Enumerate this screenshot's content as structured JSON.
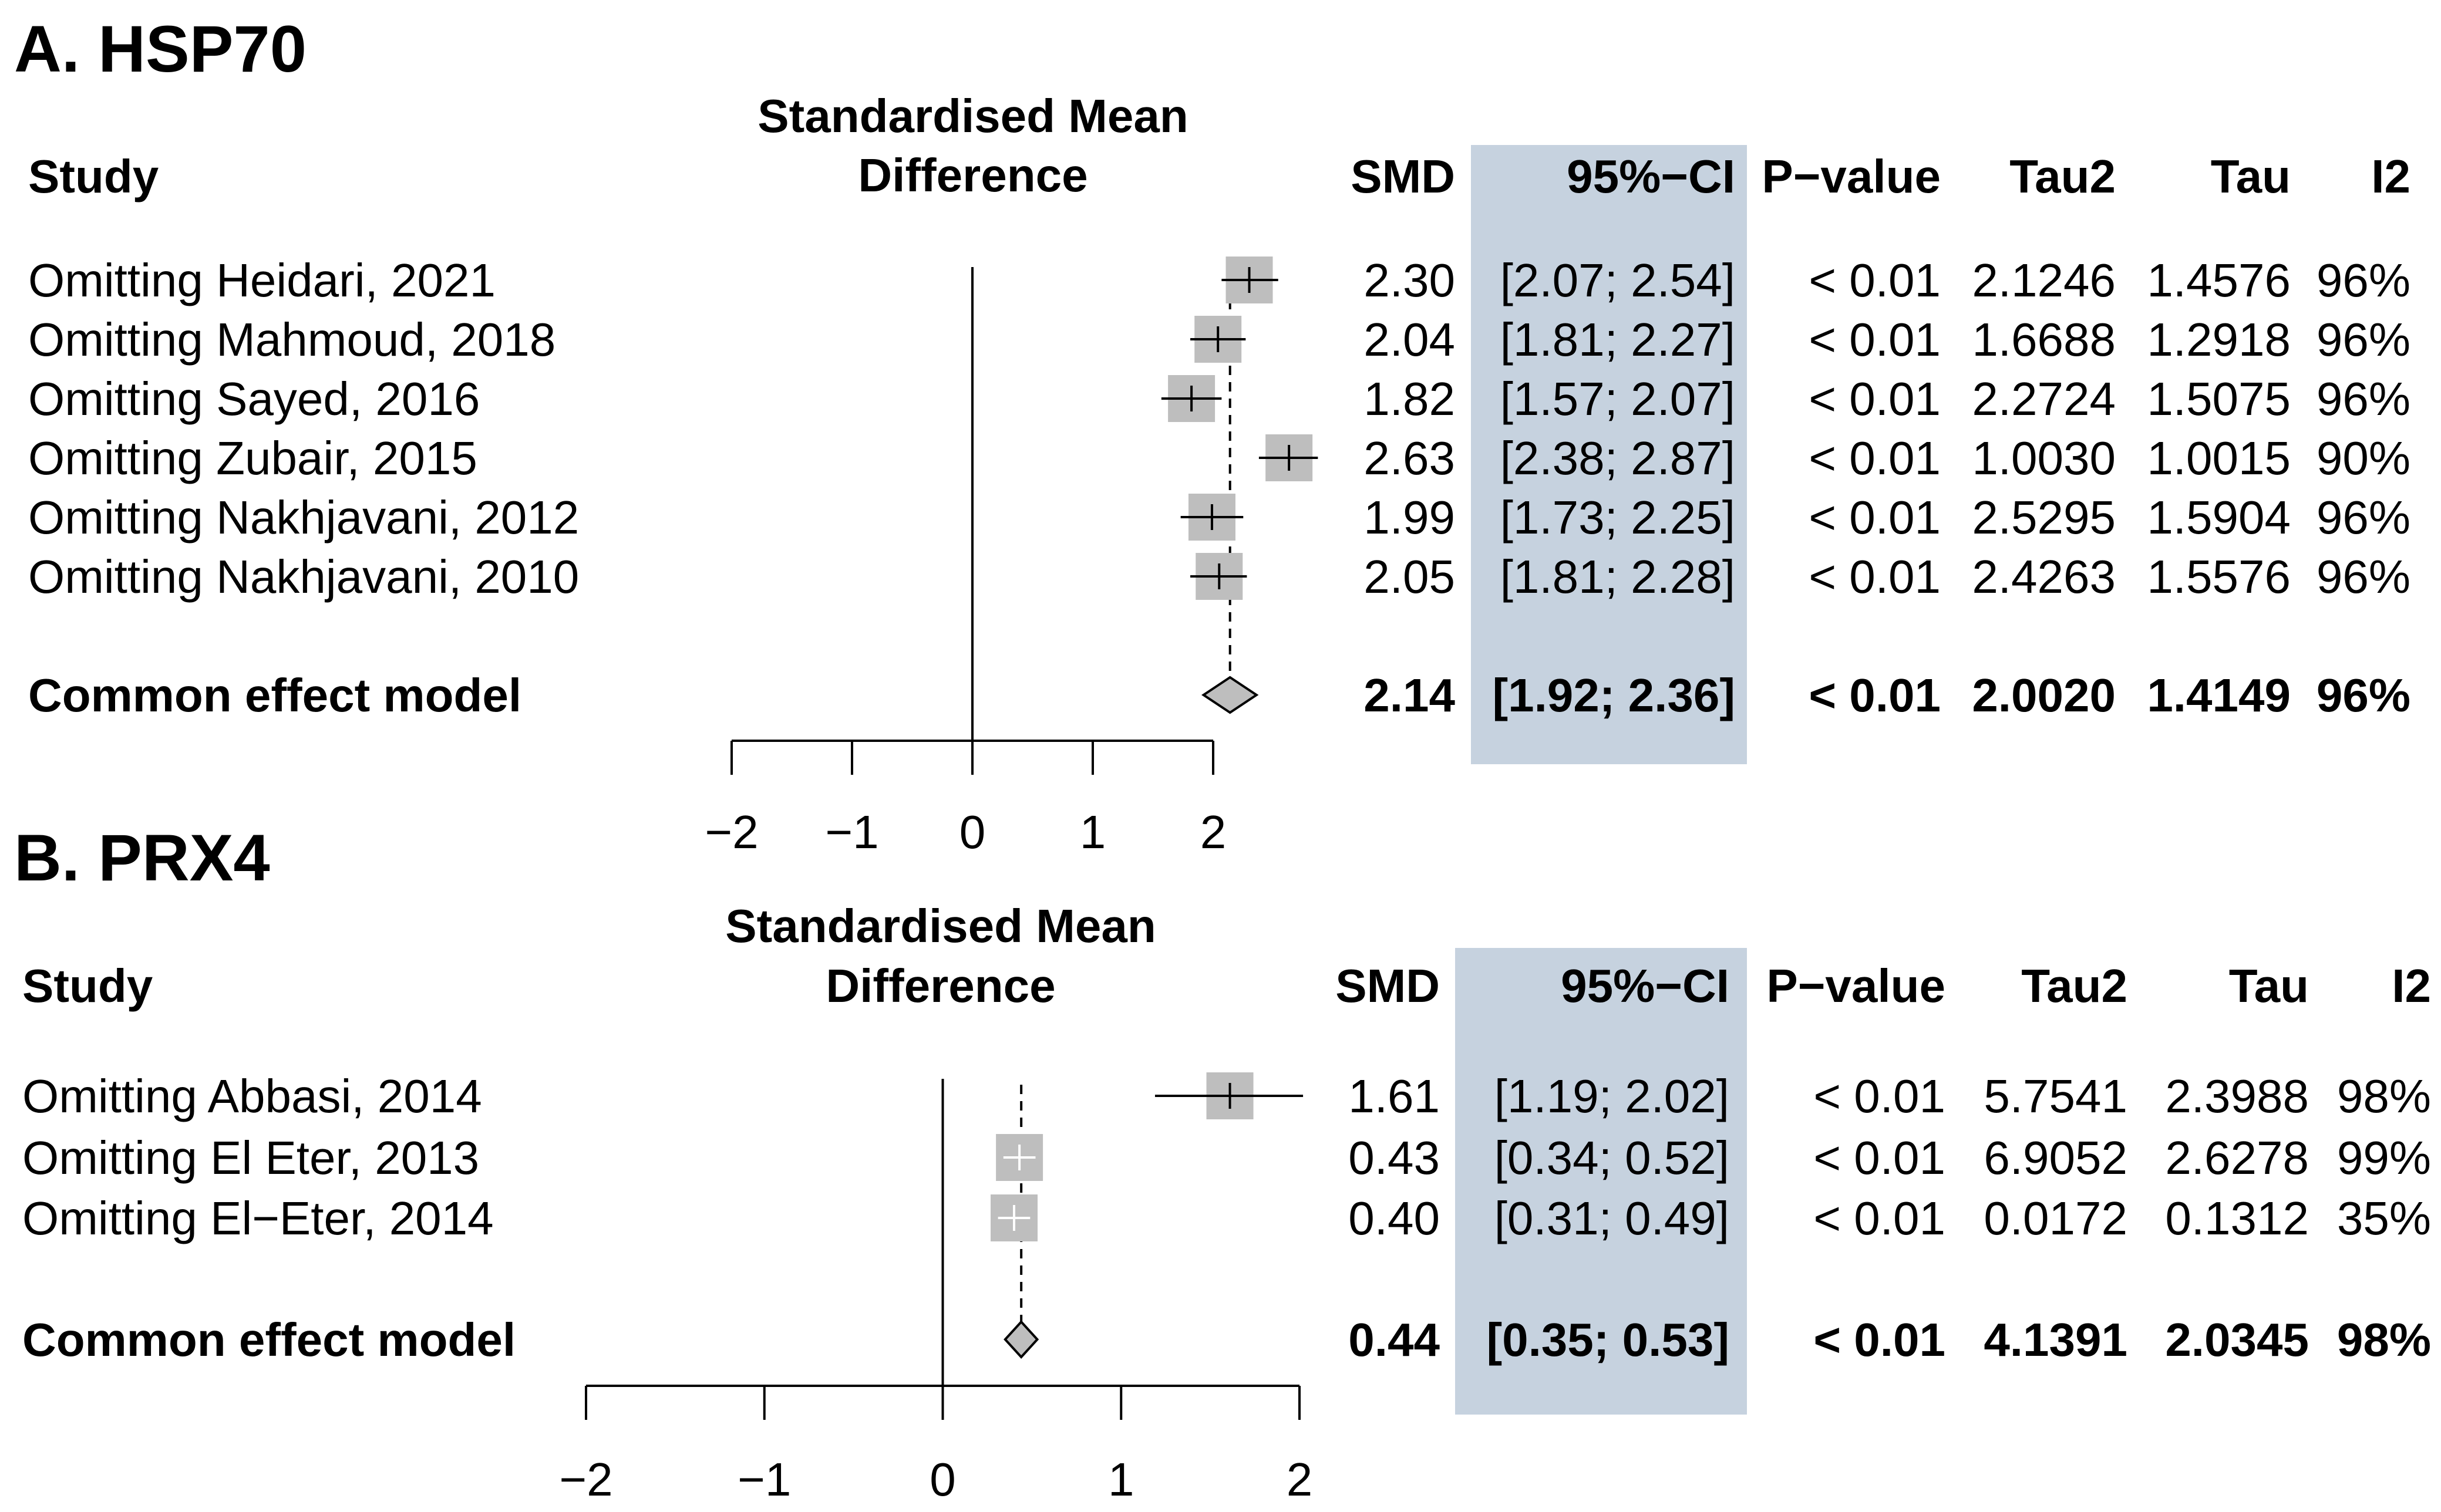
{
  "chart_data": [
    {
      "panel_title": "A. HSP70",
      "type": "forest",
      "axis_title_line1": "Standardised Mean",
      "axis_title_line2": "Difference",
      "headers": {
        "study": "Study",
        "smd": "SMD",
        "ci": "95%−CI",
        "p": "P−value",
        "tau2": "Tau2",
        "tau": "Tau",
        "i2": "I2"
      },
      "xlim": [
        -2,
        2
      ],
      "ticks": [
        -2,
        -1,
        0,
        1,
        2
      ],
      "tick_labels": [
        "−2",
        "−1",
        "0",
        "1",
        "2"
      ],
      "reference_line": 0,
      "pooled_line": 2.14,
      "studies": [
        {
          "label": "Omitting Heidari, 2021",
          "smd": 2.3,
          "lo": 2.07,
          "hi": 2.54,
          "smd_text": "2.30",
          "ci_text": "[2.07; 2.54]",
          "p": "< 0.01",
          "tau2": "2.1246",
          "tau": "1.4576",
          "i2": "96%"
        },
        {
          "label": "Omitting Mahmoud, 2018",
          "smd": 2.04,
          "lo": 1.81,
          "hi": 2.27,
          "smd_text": "2.04",
          "ci_text": "[1.81; 2.27]",
          "p": "< 0.01",
          "tau2": "1.6688",
          "tau": "1.2918",
          "i2": "96%"
        },
        {
          "label": "Omitting Sayed, 2016",
          "smd": 1.82,
          "lo": 1.57,
          "hi": 2.07,
          "smd_text": "1.82",
          "ci_text": "[1.57; 2.07]",
          "p": "< 0.01",
          "tau2": "2.2724",
          "tau": "1.5075",
          "i2": "96%"
        },
        {
          "label": "Omitting Zubair, 2015",
          "smd": 2.63,
          "lo": 2.38,
          "hi": 2.87,
          "smd_text": "2.63",
          "ci_text": "[2.38; 2.87]",
          "p": "< 0.01",
          "tau2": "1.0030",
          "tau": "1.0015",
          "i2": "90%"
        },
        {
          "label": "Omitting Nakhjavani, 2012",
          "smd": 1.99,
          "lo": 1.73,
          "hi": 2.25,
          "smd_text": "1.99",
          "ci_text": "[1.73; 2.25]",
          "p": "< 0.01",
          "tau2": "2.5295",
          "tau": "1.5904",
          "i2": "96%"
        },
        {
          "label": "Omitting Nakhjavani, 2010",
          "smd": 2.05,
          "lo": 1.81,
          "hi": 2.28,
          "smd_text": "2.05",
          "ci_text": "[1.81; 2.28]",
          "p": "< 0.01",
          "tau2": "2.4263",
          "tau": "1.5576",
          "i2": "96%"
        }
      ],
      "pooled": {
        "label": "Common effect model",
        "smd": 2.14,
        "lo": 1.92,
        "hi": 2.36,
        "smd_text": "2.14",
        "ci_text": "[1.92; 2.36]",
        "p": "< 0.01",
        "tau2": "2.0020",
        "tau": "1.4149",
        "i2": "96%"
      }
    },
    {
      "panel_title": "B. PRX4",
      "type": "forest",
      "axis_title_line1": "Standardised Mean",
      "axis_title_line2": "Difference",
      "headers": {
        "study": "Study",
        "smd": "SMD",
        "ci": "95%−CI",
        "p": "P−value",
        "tau2": "Tau2",
        "tau": "Tau",
        "i2": "I2"
      },
      "xlim": [
        -2,
        2
      ],
      "ticks": [
        -2,
        -1,
        0,
        1,
        2
      ],
      "tick_labels": [
        "−2",
        "−1",
        "0",
        "1",
        "2"
      ],
      "reference_line": 0,
      "pooled_line": 0.44,
      "studies": [
        {
          "label": "Omitting Abbasi, 2014",
          "smd": 1.61,
          "lo": 1.19,
          "hi": 2.02,
          "smd_text": "1.61",
          "ci_text": "[1.19; 2.02]",
          "p": "< 0.01",
          "tau2": "5.7541",
          "tau": "2.3988",
          "i2": "98%"
        },
        {
          "label": "Omitting El Eter, 2013",
          "smd": 0.43,
          "lo": 0.34,
          "hi": 0.52,
          "smd_text": "0.43",
          "ci_text": "[0.34; 0.52]",
          "p": "< 0.01",
          "tau2": "6.9052",
          "tau": "2.6278",
          "i2": "99%"
        },
        {
          "label": "Omitting El−Eter, 2014",
          "smd": 0.4,
          "lo": 0.31,
          "hi": 0.49,
          "smd_text": "0.40",
          "ci_text": "[0.31; 0.49]",
          "p": "< 0.01",
          "tau2": "0.0172",
          "tau": "0.1312",
          "i2": "35%"
        }
      ],
      "pooled": {
        "label": "Common effect model",
        "smd": 0.44,
        "lo": 0.35,
        "hi": 0.53,
        "smd_text": "0.44",
        "ci_text": "[0.35; 0.53]",
        "p": "< 0.01",
        "tau2": "4.1391",
        "tau": "2.0345",
        "i2": "98%"
      }
    }
  ],
  "colors": {
    "ci_highlight": "#c6d2df",
    "study_box": "#bebebe",
    "diamond_fill": "#bebebe",
    "line": "#000000",
    "inner_whisker_light": "#ffffff"
  }
}
